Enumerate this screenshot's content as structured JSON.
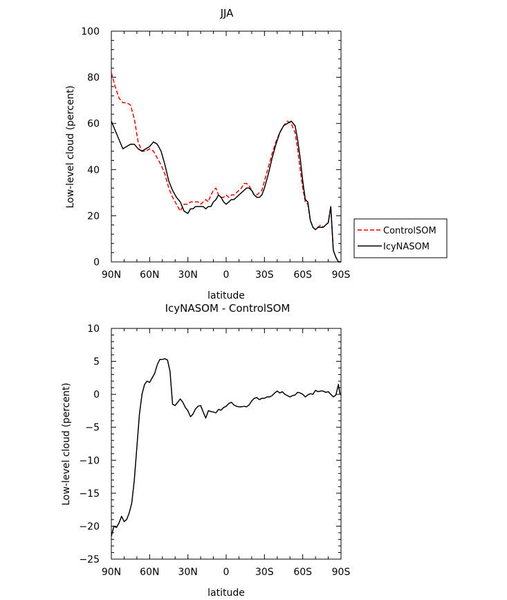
{
  "chart_data": [
    {
      "type": "line",
      "title": "JJA",
      "xlabel": "latitude",
      "ylabel": "Low-level cloud (percent)",
      "x_categories": [
        "90N",
        "60N",
        "30N",
        "0",
        "30S",
        "60S",
        "90S"
      ],
      "x_range": [
        90,
        -90
      ],
      "ylim": [
        0,
        100
      ],
      "y_ticks": [
        0,
        20,
        40,
        60,
        80,
        100
      ],
      "grid": false,
      "legend_position": "right",
      "series": [
        {
          "name": "ControlSOM",
          "color": "#e00000",
          "dash": "dashed",
          "x": [
            90,
            87,
            84,
            81,
            78,
            75,
            72,
            69,
            66,
            63,
            60,
            57,
            54,
            51,
            48,
            45,
            42,
            39,
            36,
            33,
            30,
            28,
            26,
            24,
            22,
            20,
            18,
            16,
            14,
            12,
            10,
            8,
            6,
            4,
            2,
            0,
            -2,
            -4,
            -6,
            -8,
            -10,
            -12,
            -14,
            -16,
            -18,
            -20,
            -22,
            -24,
            -26,
            -28,
            -30,
            -33,
            -36,
            -39,
            -42,
            -45,
            -48,
            -51,
            -54,
            -56,
            -58,
            -60,
            -62,
            -64,
            -66,
            -68,
            -70,
            -72,
            -74,
            -76,
            -78,
            -80,
            -82,
            -84,
            -86,
            -88,
            -89,
            -90
          ],
          "y": [
            82,
            76,
            71,
            69,
            69,
            68,
            62,
            52,
            48,
            48,
            49,
            48,
            45,
            42,
            38,
            32,
            28,
            25,
            22,
            25,
            25,
            26,
            26,
            26,
            26,
            25,
            26,
            27,
            26,
            29,
            31,
            32,
            29,
            28,
            28,
            29,
            28,
            29,
            29,
            30,
            31,
            32,
            34,
            34,
            33,
            31,
            29,
            29,
            30,
            31,
            35,
            41,
            47,
            52,
            56,
            59,
            61,
            60,
            56,
            49,
            40,
            32,
            26,
            25,
            18,
            15,
            14,
            15,
            16,
            15,
            16,
            17,
            24,
            5,
            2,
            0,
            0,
            0
          ]
        },
        {
          "name": "IcyNASOM",
          "color": "#000000",
          "dash": "solid",
          "x": [
            90,
            87,
            84,
            81,
            78,
            75,
            72,
            69,
            66,
            63,
            60,
            57,
            54,
            51,
            48,
            45,
            42,
            39,
            36,
            33,
            30,
            28,
            26,
            24,
            22,
            20,
            18,
            16,
            14,
            12,
            10,
            8,
            6,
            4,
            2,
            0,
            -2,
            -4,
            -6,
            -8,
            -10,
            -12,
            -14,
            -16,
            -18,
            -20,
            -22,
            -24,
            -26,
            -28,
            -30,
            -33,
            -36,
            -39,
            -42,
            -45,
            -48,
            -51,
            -54,
            -56,
            -58,
            -60,
            -62,
            -64,
            -66,
            -68,
            -70,
            -72,
            -74,
            -76,
            -78,
            -80,
            -82,
            -84,
            -86,
            -88,
            -89,
            -90
          ],
          "y": [
            61,
            57,
            53,
            49,
            50,
            51,
            51,
            49,
            48,
            49,
            50,
            52,
            51,
            48,
            42,
            35,
            31,
            28,
            26,
            22,
            21,
            23,
            23,
            24,
            24,
            24,
            24,
            23,
            24,
            24,
            26,
            27,
            29,
            28,
            26,
            25,
            26,
            27,
            27,
            28,
            29,
            30,
            31,
            32,
            32,
            31,
            29,
            28,
            28,
            29,
            32,
            38,
            45,
            51,
            56,
            59,
            60,
            61,
            59,
            53,
            45,
            35,
            27,
            26,
            18,
            15,
            14,
            15,
            15,
            15,
            16,
            17,
            24,
            5,
            2,
            0,
            0,
            0
          ]
        }
      ]
    },
    {
      "type": "line",
      "title": "IcyNASOM - ControlSOM",
      "xlabel": "latitude",
      "ylabel": "Low-level cloud (percent)",
      "x_categories": [
        "90N",
        "60N",
        "30N",
        "0",
        "30S",
        "60S",
        "90S"
      ],
      "x_range": [
        90,
        -90
      ],
      "ylim": [
        -25,
        10
      ],
      "y_ticks": [
        -25,
        -20,
        -15,
        -10,
        -5,
        0,
        5,
        10
      ],
      "grid": false,
      "series": [
        {
          "color": "#000000",
          "dash": "solid",
          "x": [
            90,
            88,
            86,
            84,
            82,
            80,
            78,
            76,
            74,
            72,
            70,
            68,
            66,
            64,
            62,
            60,
            58,
            56,
            54,
            52,
            50,
            48,
            46,
            44,
            42,
            40,
            38,
            36,
            34,
            32,
            30,
            28,
            26,
            24,
            22,
            20,
            18,
            16,
            14,
            12,
            10,
            8,
            6,
            4,
            2,
            0,
            -2,
            -4,
            -6,
            -8,
            -10,
            -12,
            -14,
            -16,
            -18,
            -20,
            -22,
            -24,
            -26,
            -28,
            -30,
            -32,
            -34,
            -36,
            -38,
            -40,
            -42,
            -44,
            -46,
            -48,
            -50,
            -52,
            -54,
            -56,
            -58,
            -60,
            -62,
            -64,
            -66,
            -68,
            -70,
            -72,
            -74,
            -76,
            -78,
            -80,
            -82,
            -84,
            -86,
            -88,
            -89,
            -90
          ],
          "y": [
            -21.5,
            -20,
            -20.2,
            -19.5,
            -18.5,
            -19.3,
            -19,
            -18,
            -16.5,
            -13,
            -8,
            -3,
            0,
            1.5,
            2,
            1.8,
            2.5,
            3.2,
            4.5,
            5.3,
            5.3,
            5.4,
            5.2,
            3.5,
            -1.5,
            -1.7,
            -1.2,
            -0.7,
            -1.2,
            -2,
            -2.5,
            -3.4,
            -3,
            -2.2,
            -1.8,
            -1.7,
            -2.7,
            -3.6,
            -2.5,
            -2.6,
            -2.7,
            -2.8,
            -2.3,
            -2.4,
            -2,
            -1.8,
            -1.4,
            -1.2,
            -1.6,
            -1.8,
            -1.9,
            -1.9,
            -1.8,
            -1.9,
            -1.6,
            -1.0,
            -0.6,
            -0.5,
            -0.8,
            -0.6,
            -0.6,
            -0.4,
            -0.4,
            -0.2,
            0.2,
            0.5,
            0.2,
            0.4,
            0.0,
            -0.2,
            -0.4,
            -0.2,
            -0.1,
            0.3,
            0.2,
            0.0,
            -0.4,
            -0.1,
            0.1,
            0.0,
            0.6,
            0.4,
            0.5,
            0.5,
            0.3,
            0.4,
            0.0,
            -0.4,
            -0.1,
            1.5,
            0.2,
            -0.1
          ]
        }
      ]
    }
  ]
}
